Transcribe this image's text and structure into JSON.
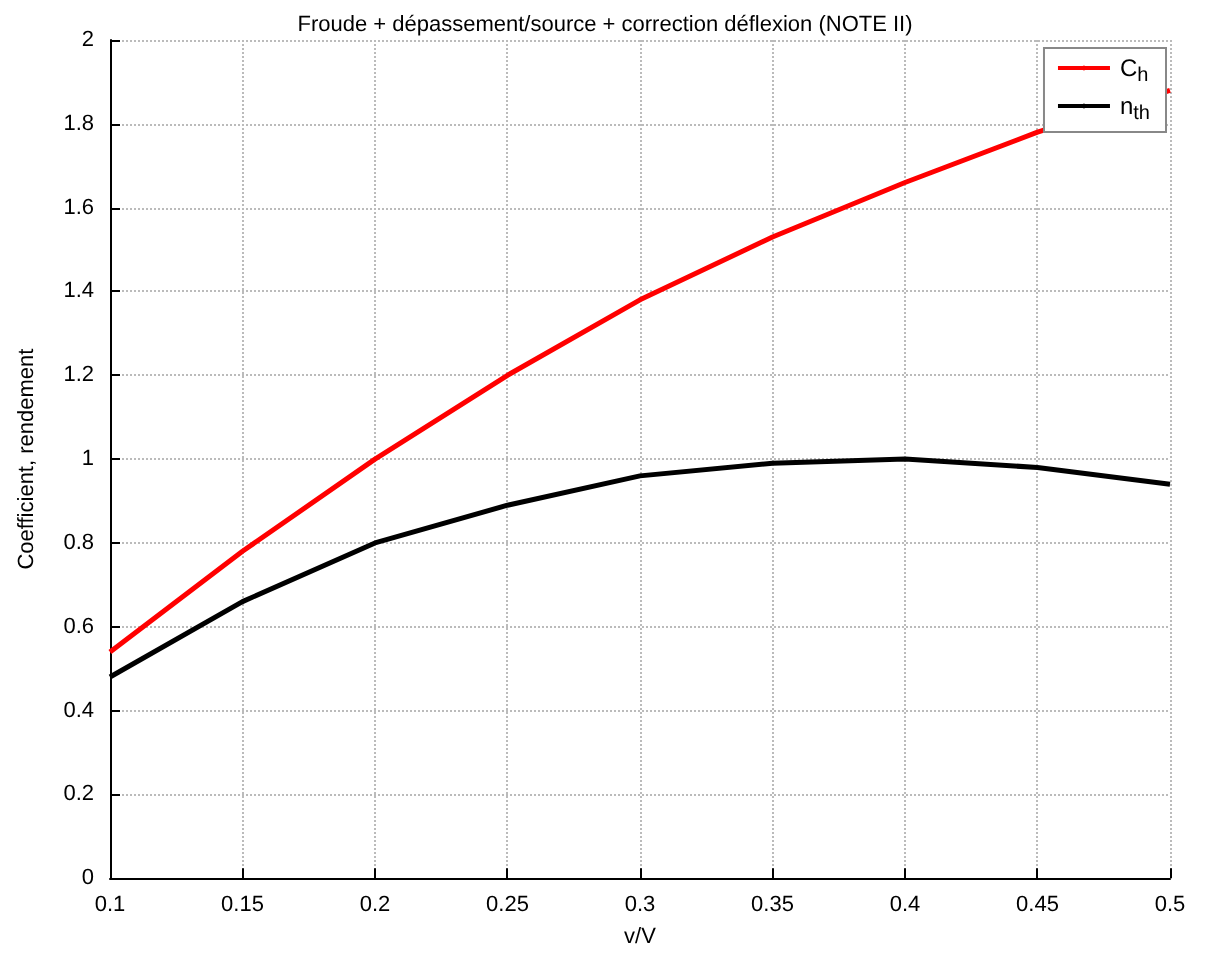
{
  "chart_data": {
    "type": "line",
    "title": "Froude + dépassement/source + correction déflexion (NOTE II)",
    "xlabel": "v/V",
    "ylabel": "Coefficient, rendement",
    "x": [
      0.1,
      0.15,
      0.2,
      0.25,
      0.3,
      0.35,
      0.4,
      0.45,
      0.5
    ],
    "series": [
      {
        "name": "C$_{h}$",
        "color": "#ff0000",
        "values": [
          0.54,
          0.78,
          1.0,
          1.2,
          1.38,
          1.53,
          1.66,
          1.78,
          1.88
        ]
      },
      {
        "name": "n$_{th}$",
        "color": "#000000",
        "values": [
          0.48,
          0.66,
          0.8,
          0.89,
          0.96,
          0.99,
          1.0,
          0.98,
          0.94
        ]
      }
    ],
    "xlim": [
      0.1,
      0.5
    ],
    "xticks": [
      0.1,
      0.15,
      0.2,
      0.25,
      0.3,
      0.35,
      0.4,
      0.45,
      0.5
    ],
    "ylim": [
      0,
      2
    ],
    "yticks": [
      0,
      0.2,
      0.4,
      0.6,
      0.8,
      1,
      1.2,
      1.4,
      1.6,
      1.8,
      2
    ],
    "grid": true,
    "legend": "top right",
    "marker": "none",
    "line_style": "solid"
  }
}
